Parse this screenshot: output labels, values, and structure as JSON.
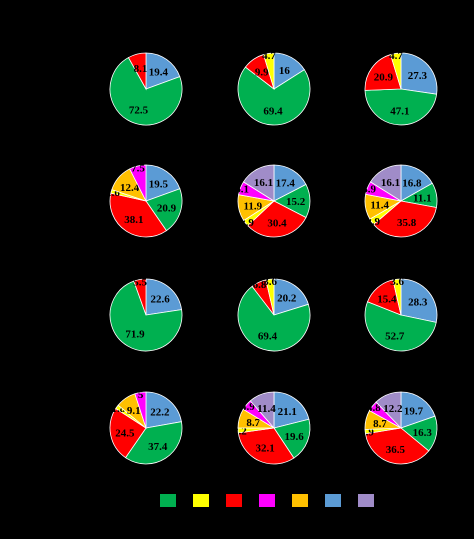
{
  "colors": {
    "c1": "#00b050",
    "c2": "#ffff00",
    "c3": "#ff0000",
    "c4": "#ff00ff",
    "c5": "#ffc000",
    "c6": "#5b9bd5",
    "c7": "#a08cc8"
  },
  "chart_data": [
    {
      "type": "pie",
      "slices": [
        {
          "value": 19.4,
          "label": "19.4",
          "color": "c6"
        },
        {
          "value": 72.5,
          "label": "72.5",
          "color": "c1"
        },
        {
          "value": 8.1,
          "label": "8.1",
          "color": "c3"
        }
      ]
    },
    {
      "type": "pie",
      "slices": [
        {
          "value": 16,
          "label": "16",
          "color": "c6"
        },
        {
          "value": 69.4,
          "label": "69.4",
          "color": "c1"
        },
        {
          "value": 9.9,
          "label": "9.9",
          "color": "c3"
        },
        {
          "value": 4.7,
          "label": "4.7",
          "color": "c2"
        }
      ]
    },
    {
      "type": "pie",
      "slices": [
        {
          "value": 27.3,
          "label": "27.3",
          "color": "c6"
        },
        {
          "value": 47.1,
          "label": "47.1",
          "color": "c1"
        },
        {
          "value": 20.9,
          "label": "20.9",
          "color": "c3"
        },
        {
          "value": 4.7,
          "label": "4.7",
          "color": "c2"
        }
      ]
    },
    {
      "type": "pie",
      "slices": [
        {
          "value": 19.5,
          "label": "19.5",
          "color": "c6"
        },
        {
          "value": 20.9,
          "label": "20.9",
          "color": "c1"
        },
        {
          "value": 38.1,
          "label": "38.1",
          "color": "c3"
        },
        {
          "value": 1.6,
          "label": "1.6",
          "color": "c2"
        },
        {
          "value": 12.4,
          "label": "12.4",
          "color": "c5"
        },
        {
          "value": 7.5,
          "label": "7.5",
          "color": "c4"
        }
      ]
    },
    {
      "type": "pie",
      "slices": [
        {
          "value": 17.4,
          "label": "17.4",
          "color": "c6"
        },
        {
          "value": 15.2,
          "label": "15.2",
          "color": "c1"
        },
        {
          "value": 30.4,
          "label": "30.4",
          "color": "c3"
        },
        {
          "value": 2.9,
          "label": "2.9",
          "color": "c2"
        },
        {
          "value": 11.9,
          "label": "11.9",
          "color": "c5"
        },
        {
          "value": 6.1,
          "label": "6.1",
          "color": "c4"
        },
        {
          "value": 16.1,
          "label": "16.1",
          "color": "c7"
        }
      ]
    },
    {
      "type": "pie",
      "slices": [
        {
          "value": 16.8,
          "label": "16.8",
          "color": "c6"
        },
        {
          "value": 11.1,
          "label": "11.1",
          "color": "c1"
        },
        {
          "value": 35.8,
          "label": "35.8",
          "color": "c3"
        },
        {
          "value": 2.9,
          "label": "2.9",
          "color": "c2"
        },
        {
          "value": 11.4,
          "label": "11.4",
          "color": "c5"
        },
        {
          "value": 5.9,
          "label": "5.9",
          "color": "c4"
        },
        {
          "value": 16.1,
          "label": "16.1",
          "color": "c7"
        }
      ]
    },
    {
      "type": "pie",
      "slices": [
        {
          "value": 22.6,
          "label": "22.6",
          "color": "c6"
        },
        {
          "value": 71.9,
          "label": "71.9",
          "color": "c1"
        },
        {
          "value": 5.5,
          "label": "5.5",
          "color": "c3"
        }
      ]
    },
    {
      "type": "pie",
      "slices": [
        {
          "value": 20.2,
          "label": "20.2",
          "color": "c6"
        },
        {
          "value": 69.4,
          "label": "69.4",
          "color": "c1"
        },
        {
          "value": 6.8,
          "label": "6.8",
          "color": "c3"
        },
        {
          "value": 3.6,
          "label": "3.6",
          "color": "c2"
        }
      ]
    },
    {
      "type": "pie",
      "slices": [
        {
          "value": 28.3,
          "label": "28.3",
          "color": "c6"
        },
        {
          "value": 52.7,
          "label": "52.7",
          "color": "c1"
        },
        {
          "value": 15.4,
          "label": "15.4",
          "color": "c3"
        },
        {
          "value": 3.6,
          "label": "3.6",
          "color": "c2"
        }
      ]
    },
    {
      "type": "pie",
      "slices": [
        {
          "value": 22.2,
          "label": "22.2",
          "color": "c6"
        },
        {
          "value": 37.4,
          "label": "37.4",
          "color": "c1"
        },
        {
          "value": 24.5,
          "label": "24.5",
          "color": "c3"
        },
        {
          "value": 1.8,
          "label": "1.8",
          "color": "c2"
        },
        {
          "value": 9.1,
          "label": "9.1",
          "color": "c5"
        },
        {
          "value": 5,
          "label": "5",
          "color": "c4"
        }
      ]
    },
    {
      "type": "pie",
      "slices": [
        {
          "value": 21.1,
          "label": "21.1",
          "color": "c6"
        },
        {
          "value": 19.6,
          "label": "19.6",
          "color": "c1"
        },
        {
          "value": 32.1,
          "label": "32.1",
          "color": "c3"
        },
        {
          "value": 2.2,
          "label": "2.2",
          "color": "c2"
        },
        {
          "value": 8.7,
          "label": "8.7",
          "color": "c5"
        },
        {
          "value": 4.9,
          "label": "4.9",
          "color": "c4"
        },
        {
          "value": 11.4,
          "label": "11.4",
          "color": "c7"
        }
      ]
    },
    {
      "type": "pie",
      "slices": [
        {
          "value": 19.7,
          "label": "19.7",
          "color": "c6"
        },
        {
          "value": 16.3,
          "label": "16.3",
          "color": "c1"
        },
        {
          "value": 36.5,
          "label": "36.5",
          "color": "c3"
        },
        {
          "value": 1.9,
          "label": "1.9",
          "color": "c2"
        },
        {
          "value": 8.7,
          "label": "8.7",
          "color": "c5"
        },
        {
          "value": 4.8,
          "label": "4.8",
          "color": "c4"
        },
        {
          "value": 12.2,
          "label": "12.2",
          "color": "c7"
        }
      ]
    }
  ],
  "legend": {
    "items": [
      {
        "color": "c1"
      },
      {
        "color": "c2"
      },
      {
        "color": "c3"
      },
      {
        "color": "c4"
      },
      {
        "color": "c5"
      },
      {
        "color": "c6"
      },
      {
        "color": "c7"
      }
    ]
  }
}
